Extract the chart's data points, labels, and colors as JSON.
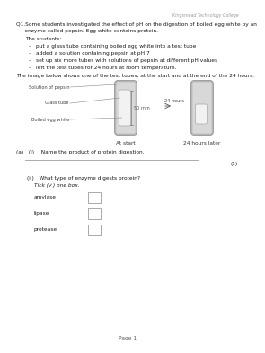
{
  "header_text": "Kingsmead Technology College",
  "q1_line1": "Q1.Some students investigated the effect of pH on the digestion of boiled egg white by an",
  "q1_line2": "     enzyme called pepsin. Egg white contains protein.",
  "students_label": "The students:",
  "bullet_points": [
    "put a glass tube containing boiled egg white into a test tube",
    "added a solution containing pepsin at pH 7",
    "set up six more tubes with solutions of pepsin at different pH values",
    "left the test tubes for 24 hours at room temperature."
  ],
  "image_intro": "The image below shows one of the test tubes, at the start and at the end of the 24 hours.",
  "labels_left": [
    "Solution of pepsin",
    "Glass tube",
    "Boiled egg white"
  ],
  "label_50mm": "50 mm",
  "arrow_text": "24 hours",
  "caption_left": "At start",
  "caption_right": "24 hours later",
  "part_a_i": "(a)   (i)    Name the product of protein digestion.",
  "marks_1": "(1)",
  "part_a_ii": "(ii)   What type of enzyme digests protein?",
  "tick_instruction": "Tick (✓) one box.",
  "options": [
    "amylase",
    "lipase",
    "protease"
  ],
  "page": "Page 1",
  "bg_color": "#ffffff",
  "text_color": "#1a1a1a",
  "gray_dark": "#888888",
  "tube_outer_color": "#b8b8b8",
  "tube_inner_color": "#d8d8d8",
  "glass_tube_color": "#f2f2f2",
  "glass_tube_edge": "#aaaaaa",
  "line_color": "#555555"
}
